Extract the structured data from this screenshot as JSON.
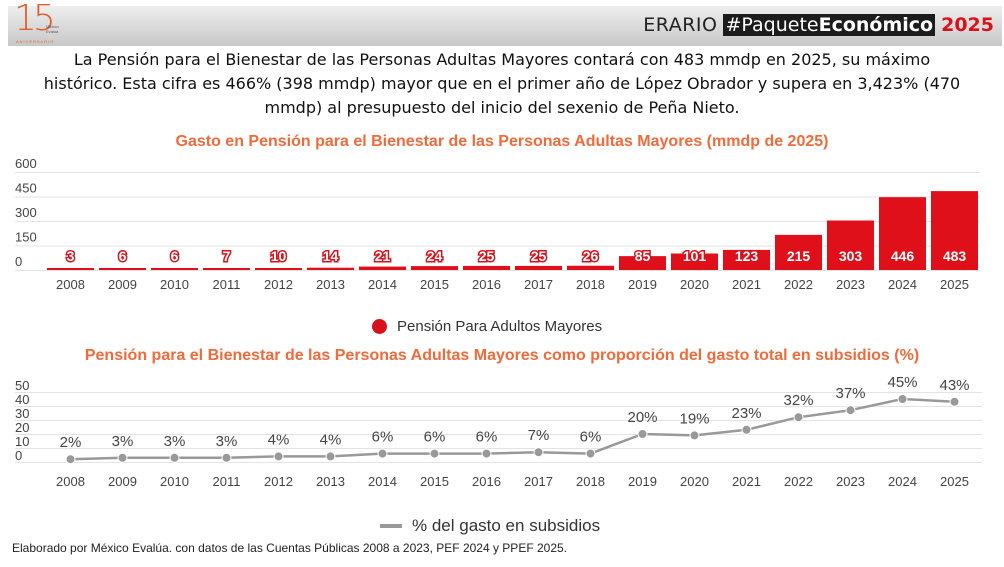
{
  "header": {
    "logo_number": "15",
    "logo_org": "México Evalúa",
    "logo_caption": "ANIVERSARIO",
    "brand_erario": "ERARIO",
    "brand_tag_light": "#Paquete",
    "brand_tag_bold": "Económico",
    "brand_year": "2025"
  },
  "headline": "La Pensión para el Bienestar de las Personas Adultas Mayores contará con 483 mmdp en 2025, su máximo histórico. Esta cifra es 466% (398 mmdp) mayor que en el primer año de López Obrador y supera en 3,423% (470 mmdp) al presupuesto del inicio del sexenio de Peña Nieto.",
  "colors": {
    "bar": "#e0101a",
    "title": "#f26a3a",
    "line": "#999999",
    "grid": "#e3e3e3"
  },
  "chart_data": [
    {
      "type": "bar",
      "title": "Gasto en Pensión para el Bienestar de las Personas Adultas Mayores (mmdp de 2025)",
      "categories": [
        "2008",
        "2009",
        "2010",
        "2011",
        "2012",
        "2013",
        "2014",
        "2015",
        "2016",
        "2017",
        "2018",
        "2019",
        "2020",
        "2021",
        "2022",
        "2023",
        "2024",
        "2025"
      ],
      "series": [
        {
          "name": "Pensión Para Adultos Mayores",
          "values": [
            3,
            6,
            6,
            7,
            10,
            14,
            21,
            24,
            25,
            25,
            26,
            85,
            101,
            123,
            215,
            303,
            446,
            483
          ]
        }
      ],
      "yticks": [
        "0",
        "150",
        "300",
        "450",
        "600"
      ],
      "ylim": [
        0,
        600
      ],
      "grid": true,
      "legend": "bottom-center",
      "xlabel": "",
      "ylabel": ""
    },
    {
      "type": "line",
      "title": "Pensión para el Bienestar de las Personas Adultas Mayores como proporción del gasto total en subsidios (%)",
      "categories": [
        "2008",
        "2009",
        "2010",
        "2011",
        "2012",
        "2013",
        "2014",
        "2015",
        "2016",
        "2017",
        "2018",
        "2019",
        "2020",
        "2021",
        "2022",
        "2023",
        "2024",
        "2025"
      ],
      "series": [
        {
          "name": "% del gasto en subsidios",
          "values": [
            2,
            3,
            3,
            3,
            4,
            4,
            6,
            6,
            6,
            7,
            6,
            20,
            19,
            23,
            32,
            37,
            45,
            43
          ],
          "labels": [
            "2%",
            "3%",
            "3%",
            "3%",
            "4%",
            "4%",
            "6%",
            "6%",
            "6%",
            "7%",
            "6%",
            "20%",
            "19%",
            "23%",
            "32%",
            "37%",
            "45%",
            "43%"
          ]
        }
      ],
      "yticks": [
        "0",
        "10",
        "20",
        "30",
        "40",
        "50"
      ],
      "ylim": [
        0,
        50
      ],
      "grid": true,
      "legend": "bottom-center",
      "xlabel": "",
      "ylabel": ""
    }
  ],
  "legend_bar": "Pensión Para Adultos Mayores",
  "legend_line": "% del gasto en subsidios",
  "footer": "Elaborado por México Evalúa. con datos de las Cuentas Públicas 2008 a 2023, PEF 2024 y PPEF 2025."
}
